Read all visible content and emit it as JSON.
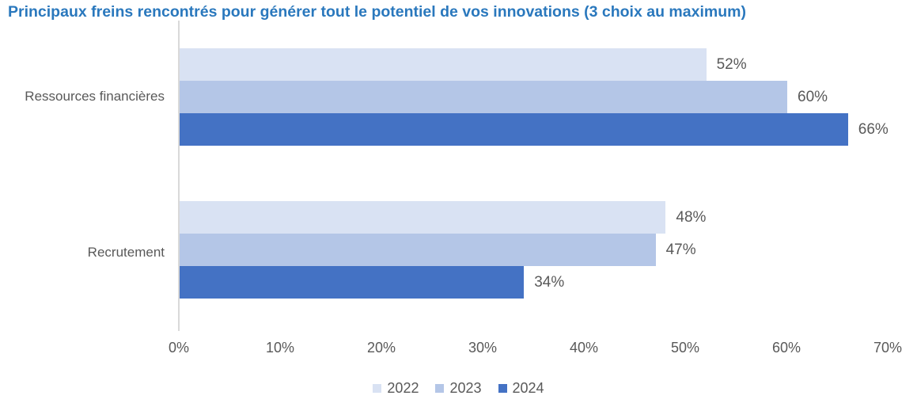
{
  "chart_data": {
    "type": "bar",
    "orientation": "horizontal",
    "title": "Principaux freins rencontrés pour générer tout le potentiel de vos innovations (3 choix au maximum)",
    "categories": [
      "Ressources financières",
      "Recrutement"
    ],
    "series": [
      {
        "name": "2022",
        "color": "#D9E2F3",
        "values": [
          52,
          48
        ],
        "labels": [
          "52%",
          "48%"
        ]
      },
      {
        "name": "2023",
        "color": "#B4C6E7",
        "values": [
          60,
          47
        ],
        "labels": [
          "60%",
          "47%"
        ]
      },
      {
        "name": "2024",
        "color": "#4472C4",
        "values": [
          66,
          34
        ],
        "labels": [
          "66%",
          "34%"
        ]
      }
    ],
    "xlim": [
      0,
      70
    ],
    "x_ticks": [
      "0%",
      "10%",
      "20%",
      "30%",
      "40%",
      "50%",
      "60%",
      "70%"
    ],
    "value_suffix": "%",
    "grid": false,
    "legend_position": "bottom"
  },
  "colors": {
    "title": "#2A78BD",
    "text": "#595959",
    "axis_line": "#D9D9D9",
    "background": "#FFFFFF"
  }
}
